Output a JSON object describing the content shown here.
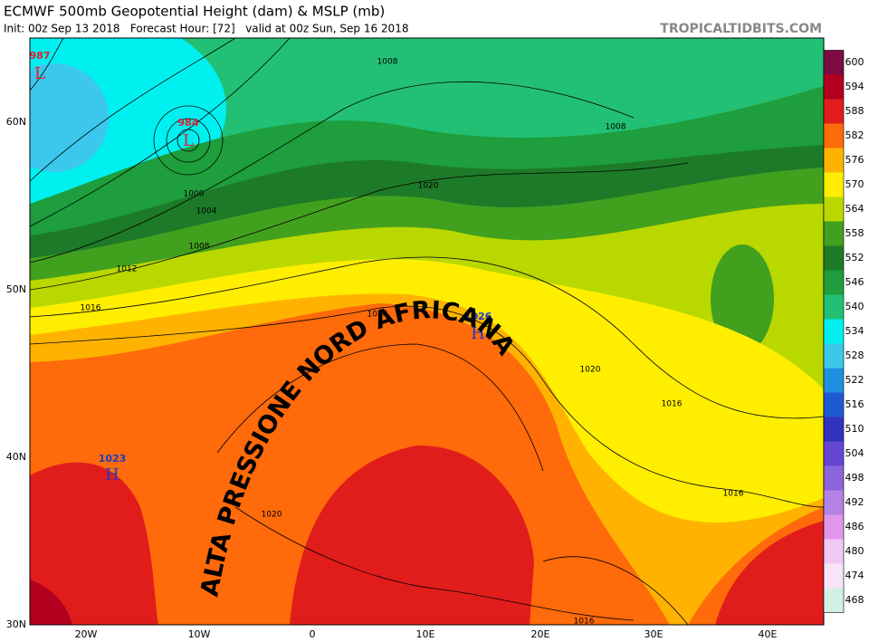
{
  "header": {
    "title": "ECMWF 500mb Geopotential Height (dam) & MSLP (mb)",
    "subtitle": "Init: 00z Sep 13 2018   Forecast Hour: [72]   valid at 00z Sun, Sep 16 2018",
    "source": "TROPICALTIDBITS.COM"
  },
  "lat_labels": [
    "60N",
    "50N",
    "40N",
    "30N"
  ],
  "lon_labels": [
    "20W",
    "10W",
    "0",
    "10E",
    "20E",
    "30E",
    "40E"
  ],
  "colorbar": {
    "levels": [
      600,
      594,
      588,
      582,
      576,
      570,
      564,
      558,
      552,
      546,
      540,
      534,
      528,
      522,
      516,
      510,
      504,
      498,
      492,
      486,
      480,
      474,
      468
    ],
    "colors": [
      "#7d0a42",
      "#b3001e",
      "#e11d1b",
      "#ff6a0a",
      "#ffb300",
      "#ffee00",
      "#b9d800",
      "#41a01e",
      "#1d7a28",
      "#1e9e3c",
      "#22c074",
      "#00f0f0",
      "#3cc8ec",
      "#1e90e0",
      "#1e5ad2",
      "#3232c0",
      "#6446d2",
      "#8c64dc",
      "#b482e4",
      "#e096ec",
      "#f0c8f4",
      "#f8e4f8",
      "#d2f0e6"
    ]
  },
  "pressure_centers": [
    {
      "value": 987,
      "letter": "L"
    },
    {
      "value": 984,
      "letter": "L"
    },
    {
      "value": 1026,
      "letter": "H"
    },
    {
      "value": 1023,
      "letter": "H"
    }
  ],
  "contour_labels": [
    1008,
    1008,
    1020,
    1000,
    1004,
    1008,
    1012,
    1016,
    1024,
    1020,
    1016,
    1016,
    1020,
    1016
  ],
  "annotation": "ALTA PRESSIONE NORD AFRICANA"
}
